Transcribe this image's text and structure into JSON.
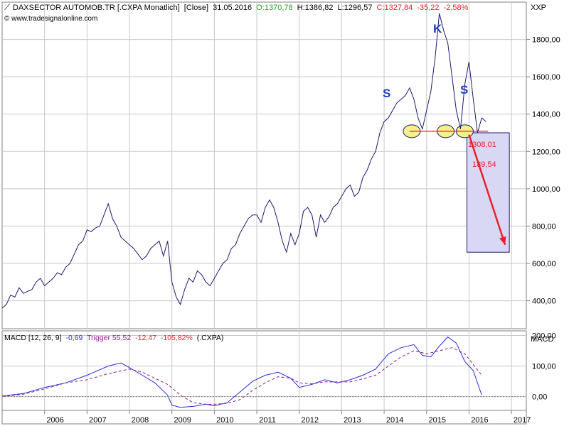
{
  "header": {
    "icon": "chart-line-icon",
    "title": "DAXSECTOR AUTOMOB.TR [.CXPA  Monatlich]",
    "mode": "[Close]",
    "date": "31.05.2016",
    "open": "O:1370,78",
    "high": "H:1386,82",
    "low": "L:1296,57",
    "close": "C:1327,84",
    "change": "-35,22",
    "change_pct": "-2,58%",
    "copyright": "© www.tradesignalonline.com",
    "colors": {
      "open": "#22a322",
      "close": "#e8202a",
      "text": "#000000"
    }
  },
  "price_axis_label": "XXP",
  "macd_axis_label": "MACD",
  "macd_legend": {
    "name": "MACD [12, 26, 9]",
    "value": "-0,69",
    "trigger": "Trigger 55,52",
    "diff": "-12,47",
    "diff_pct": "-105,82%",
    "symbol": "(.CXPA)",
    "colors": {
      "macd": "#2b2bd6",
      "trigger": "#8a1f8a",
      "diff": "#e8202a"
    }
  },
  "annotations": {
    "left_shoulder": "S",
    "head": "K",
    "right_shoulder": "S",
    "neckline_value": "1308,01",
    "target_distance": "189,54"
  },
  "chart_data": [
    {
      "type": "line",
      "title": "",
      "xlabel": "",
      "ylabel": "",
      "ylim": [
        250,
        2000
      ],
      "y_ticks": [
        400,
        600,
        800,
        1000,
        1200,
        1400,
        1600,
        1800
      ],
      "y_tick_labels": [
        "400,00",
        "600,00",
        "800,00",
        "1000,00",
        "1200,00",
        "1400,00",
        "1600,00",
        "1800,00"
      ],
      "x_ticks": [
        2006,
        2007,
        2008,
        2009,
        2010,
        2011,
        2012,
        2013,
        2014,
        2015,
        2016,
        2017
      ],
      "x_range": [
        2005.0,
        2017.35
      ],
      "grid": true,
      "series": [
        {
          "color": "#1a1a6e",
          "x": [
            2005.0,
            2005.1,
            2005.2,
            2005.3,
            2005.4,
            2005.5,
            2005.6,
            2005.7,
            2005.8,
            2005.9,
            2006.0,
            2006.1,
            2006.2,
            2006.3,
            2006.4,
            2006.5,
            2006.6,
            2006.7,
            2006.8,
            2006.9,
            2007.0,
            2007.1,
            2007.2,
            2007.3,
            2007.4,
            2007.5,
            2007.6,
            2007.7,
            2007.8,
            2007.9,
            2008.0,
            2008.1,
            2008.2,
            2008.3,
            2008.4,
            2008.5,
            2008.6,
            2008.7,
            2008.8,
            2008.9,
            2009.0,
            2009.1,
            2009.2,
            2009.3,
            2009.4,
            2009.5,
            2009.6,
            2009.7,
            2009.8,
            2009.9,
            2010.0,
            2010.1,
            2010.2,
            2010.3,
            2010.4,
            2010.5,
            2010.6,
            2010.7,
            2010.8,
            2010.9,
            2011.0,
            2011.1,
            2011.2,
            2011.3,
            2011.4,
            2011.5,
            2011.6,
            2011.7,
            2011.8,
            2011.9,
            2012.0,
            2012.1,
            2012.2,
            2012.3,
            2012.4,
            2012.5,
            2012.6,
            2012.7,
            2012.8,
            2012.9,
            2013.0,
            2013.1,
            2013.2,
            2013.3,
            2013.4,
            2013.5,
            2013.6,
            2013.7,
            2013.8,
            2013.9,
            2014.0,
            2014.1,
            2014.2,
            2014.3,
            2014.4,
            2014.5,
            2014.6,
            2014.7,
            2014.8,
            2014.9,
            2015.0,
            2015.1,
            2015.2,
            2015.3,
            2015.4,
            2015.5,
            2015.6,
            2015.7,
            2015.8,
            2015.9,
            2016.0,
            2016.1,
            2016.2,
            2016.3,
            2016.4
          ],
          "y": [
            360,
            380,
            430,
            420,
            470,
            440,
            450,
            460,
            500,
            520,
            480,
            500,
            520,
            550,
            540,
            580,
            600,
            650,
            700,
            720,
            780,
            770,
            790,
            800,
            860,
            920,
            840,
            800,
            740,
            720,
            700,
            680,
            650,
            620,
            640,
            680,
            700,
            720,
            640,
            720,
            500,
            420,
            380,
            460,
            520,
            500,
            560,
            540,
            500,
            480,
            520,
            560,
            600,
            620,
            680,
            700,
            760,
            800,
            840,
            860,
            860,
            820,
            900,
            940,
            900,
            820,
            720,
            660,
            760,
            700,
            760,
            880,
            900,
            860,
            740,
            860,
            820,
            850,
            900,
            920,
            960,
            1000,
            1020,
            960,
            980,
            1060,
            1100,
            1160,
            1200,
            1300,
            1360,
            1380,
            1420,
            1460,
            1480,
            1500,
            1540,
            1480,
            1380,
            1320,
            1420,
            1520,
            1700,
            1940,
            1850,
            1780,
            1600,
            1420,
            1320,
            1560,
            1680,
            1480,
            1300,
            1380,
            1360
          ]
        },
        {
          "name": "Neckline",
          "color": "#e8202a",
          "x": [
            2014.6,
            2016.45
          ],
          "y": [
            1308.01,
            1308.01
          ]
        }
      ],
      "target_box": {
        "x": [
          2015.95,
          2016.95
        ],
        "y": [
          1300,
          660
        ]
      },
      "target_arrow": {
        "x": [
          2016.0,
          2016.85
        ],
        "y": [
          1290,
          700
        ]
      }
    },
    {
      "type": "line",
      "title": "",
      "ylim": [
        -45,
        215
      ],
      "y_ticks": [
        0,
        100,
        200
      ],
      "y_tick_labels": [
        "0,00",
        "100,00",
        "200,00"
      ],
      "x_range": [
        2005.0,
        2017.35
      ],
      "grid": true,
      "series": [
        {
          "color": "#2b2bd6",
          "x": [
            2005.0,
            2005.5,
            2006.0,
            2006.5,
            2007.0,
            2007.5,
            2007.8,
            2008.0,
            2008.3,
            2008.6,
            2008.9,
            2009.0,
            2009.2,
            2009.5,
            2009.8,
            2010.0,
            2010.3,
            2010.6,
            2010.9,
            2011.2,
            2011.5,
            2011.8,
            2012.0,
            2012.3,
            2012.6,
            2012.9,
            2013.2,
            2013.5,
            2013.8,
            2014.1,
            2014.4,
            2014.7,
            2014.9,
            2015.1,
            2015.3,
            2015.5,
            2015.7,
            2015.9,
            2016.1,
            2016.3
          ],
          "y": [
            2,
            10,
            30,
            45,
            70,
            100,
            110,
            95,
            70,
            45,
            5,
            -28,
            -35,
            -32,
            -25,
            -30,
            -20,
            15,
            50,
            70,
            80,
            60,
            30,
            40,
            55,
            45,
            55,
            70,
            90,
            140,
            160,
            170,
            135,
            130,
            165,
            195,
            175,
            115,
            85,
            5
          ]
        },
        {
          "color": "#8a1f8a",
          "x": [
            2005.0,
            2005.5,
            2006.0,
            2006.5,
            2007.0,
            2007.5,
            2008.0,
            2008.3,
            2008.6,
            2008.9,
            2009.2,
            2009.5,
            2009.8,
            2010.0,
            2010.3,
            2010.6,
            2010.9,
            2011.2,
            2011.5,
            2011.8,
            2012.0,
            2012.3,
            2012.6,
            2012.9,
            2013.2,
            2013.5,
            2013.8,
            2014.1,
            2014.4,
            2014.7,
            2015.0,
            2015.3,
            2015.6,
            2015.9,
            2016.1,
            2016.3
          ],
          "y": [
            0,
            8,
            25,
            45,
            55,
            75,
            90,
            80,
            60,
            40,
            5,
            -20,
            -25,
            -25,
            -22,
            -10,
            20,
            45,
            65,
            60,
            45,
            42,
            48,
            48,
            48,
            58,
            70,
            100,
            130,
            150,
            140,
            150,
            160,
            140,
            105,
            70
          ]
        },
        {
          "color": "#808080",
          "x": [
            2005.0,
            2017.35
          ],
          "y": [
            0,
            0
          ]
        }
      ]
    }
  ]
}
